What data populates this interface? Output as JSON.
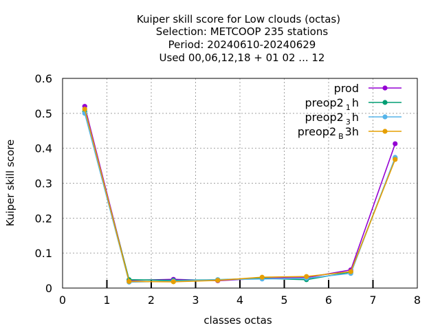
{
  "chart_data": {
    "type": "line",
    "title_lines": [
      "Kuiper skill score  for Low clouds (octas)",
      "Selection: METCOOP    235 stations",
      "Period: 20240610-20240629",
      "Used  00,06,12,18 + 01 02 ... 12"
    ],
    "xlabel": "classes octas",
    "ylabel": "Kuiper skill score",
    "xlim": [
      0,
      8
    ],
    "ylim": [
      0,
      0.6
    ],
    "xticks": [
      "0",
      "1",
      "2",
      "3",
      "4",
      "5",
      "6",
      "7",
      "8"
    ],
    "yticks": [
      "0",
      "0.1",
      "0.2",
      "0.3",
      "0.4",
      "0.5",
      "0.6"
    ],
    "grid": true,
    "legend_position": "top-right",
    "x": [
      0.5,
      1.5,
      2.5,
      3.5,
      4.5,
      5.5,
      6.5,
      7.5
    ],
    "series": [
      {
        "name": "prod",
        "name_base": "preop",
        "legend_main": "prod",
        "legend_sub": "",
        "legend_tail": "",
        "color": "#9400d3",
        "marker": "circle",
        "values": [
          0.52,
          0.022,
          0.025,
          0.021,
          0.028,
          0.03,
          0.052,
          0.413
        ]
      },
      {
        "name": "preop2 1 h",
        "legend_main": "preop2",
        "legend_sub": "1",
        "legend_tail": "h",
        "color": "#009e73",
        "marker": "circle",
        "values": [
          0.505,
          0.024,
          0.022,
          0.024,
          0.028,
          0.024,
          0.046,
          0.372
        ]
      },
      {
        "name": "preop2 3 h",
        "legend_main": "preop2",
        "legend_sub": "3",
        "legend_tail": "h",
        "color": "#56b4e9",
        "marker": "circle",
        "values": [
          0.5,
          0.017,
          0.02,
          0.024,
          0.026,
          0.028,
          0.042,
          0.374
        ]
      },
      {
        "name": "preop2 B 3h",
        "legend_main": "preop2",
        "legend_sub": "B",
        "legend_tail": "3h",
        "color": "#e69f00",
        "marker": "circle",
        "values": [
          0.512,
          0.019,
          0.018,
          0.022,
          0.031,
          0.033,
          0.047,
          0.368
        ]
      }
    ]
  }
}
